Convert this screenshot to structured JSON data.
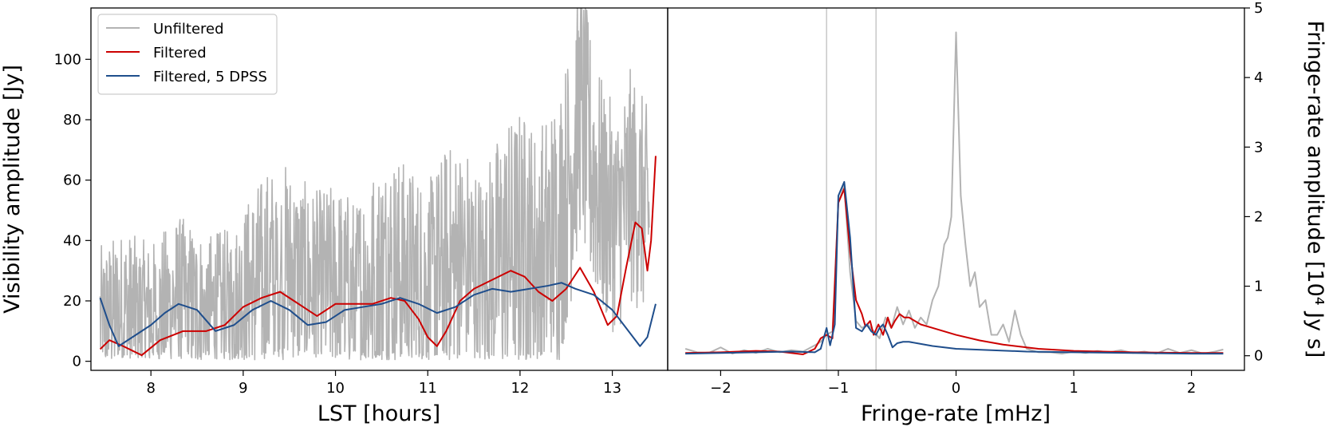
{
  "colors": {
    "unfiltered": "#b3b3b3",
    "filtered": "#cc0000",
    "dpss": "#1f4e8c",
    "marker_lines": "#c8c8c8"
  },
  "chart_data": [
    {
      "type": "line",
      "xlabel": "LST [hours]",
      "ylabel": "Visibility amplitude [Jy]",
      "xlim": [
        7.35,
        13.6
      ],
      "ylim": [
        -3,
        117
      ],
      "xticks": [
        8,
        9,
        10,
        11,
        12,
        13
      ],
      "yticks": [
        0,
        20,
        40,
        60,
        80,
        100
      ],
      "legend": {
        "position": "top-left"
      },
      "series": [
        {
          "name": "Unfiltered",
          "color": "#b3b3b3",
          "x": [
            7.45,
            7.7,
            8.0,
            8.3,
            8.6,
            8.9,
            9.1,
            9.3,
            9.45,
            9.6,
            9.8,
            10.0,
            10.2,
            10.4,
            10.6,
            10.8,
            11.0,
            11.2,
            11.4,
            11.6,
            11.8,
            12.0,
            12.2,
            12.4,
            12.55,
            12.65,
            12.75,
            12.9,
            13.05,
            13.2,
            13.4
          ],
          "y": [
            14,
            17,
            15,
            20,
            16,
            18,
            24,
            28,
            33,
            28,
            24,
            26,
            22,
            26,
            30,
            28,
            24,
            30,
            33,
            28,
            34,
            38,
            34,
            42,
            62,
            85,
            68,
            52,
            46,
            58,
            48
          ],
          "range": [
            22,
            24,
            22,
            26,
            24,
            24,
            30,
            34,
            30,
            30,
            30,
            30,
            30,
            34,
            36,
            34,
            32,
            38,
            36,
            32,
            40,
            42,
            40,
            44,
            40,
            40,
            40,
            36,
            34,
            36,
            32
          ]
        },
        {
          "name": "Filtered",
          "color": "#cc0000",
          "x": [
            7.45,
            7.55,
            7.7,
            7.9,
            8.1,
            8.35,
            8.6,
            8.8,
            9.0,
            9.2,
            9.4,
            9.6,
            9.8,
            10.0,
            10.2,
            10.4,
            10.6,
            10.75,
            10.9,
            11.0,
            11.1,
            11.2,
            11.35,
            11.5,
            11.7,
            11.9,
            12.05,
            12.2,
            12.35,
            12.5,
            12.65,
            12.8,
            12.95,
            13.05,
            13.15,
            13.25,
            13.32,
            13.38,
            13.42,
            13.47
          ],
          "y": [
            4,
            7,
            5,
            2,
            7,
            10,
            10,
            12,
            18,
            21,
            23,
            19,
            15,
            19,
            19,
            19,
            21,
            20,
            14,
            8,
            5,
            10,
            20,
            24,
            27,
            30,
            28,
            23,
            20,
            24,
            31,
            23,
            12,
            15,
            31,
            46,
            44,
            30,
            40,
            68
          ]
        },
        {
          "name": "Filtered, 5 DPSS",
          "color": "#1f4e8c",
          "x": [
            7.45,
            7.55,
            7.65,
            7.8,
            8.0,
            8.15,
            8.3,
            8.5,
            8.7,
            8.9,
            9.1,
            9.3,
            9.5,
            9.7,
            9.9,
            10.1,
            10.3,
            10.5,
            10.7,
            10.9,
            11.1,
            11.3,
            11.5,
            11.7,
            11.9,
            12.1,
            12.3,
            12.45,
            12.6,
            12.8,
            13.0,
            13.15,
            13.3,
            13.38,
            13.47
          ],
          "y": [
            21,
            12,
            5,
            8,
            12,
            16,
            19,
            17,
            10,
            12,
            17,
            20,
            17,
            12,
            13,
            17,
            18,
            19,
            21,
            19,
            16,
            18,
            22,
            24,
            23,
            24,
            25,
            26,
            24,
            22,
            17,
            11,
            5,
            8,
            19
          ]
        }
      ]
    },
    {
      "type": "line",
      "xlabel": "Fringe-rate [mHz]",
      "ylabel": "Fringe-rate amplitude [10⁴ Jy s]",
      "xlim": [
        -2.45,
        2.45
      ],
      "ylim": [
        -0.21,
        5
      ],
      "xticks": [
        -2,
        -1,
        0,
        1,
        2
      ],
      "yticks": [
        0,
        1,
        2,
        3,
        4,
        5
      ],
      "vlines": [
        -1.1,
        -0.68
      ],
      "series": [
        {
          "name": "Unfiltered",
          "color": "#b3b3b3",
          "x": [
            -2.3,
            -2.2,
            -2.1,
            -2.0,
            -1.9,
            -1.8,
            -1.7,
            -1.6,
            -1.5,
            -1.4,
            -1.3,
            -1.2,
            -1.15,
            -1.1,
            -1.05,
            -1.0,
            -0.95,
            -0.9,
            -0.85,
            -0.8,
            -0.75,
            -0.7,
            -0.65,
            -0.6,
            -0.55,
            -0.5,
            -0.45,
            -0.4,
            -0.35,
            -0.3,
            -0.25,
            -0.2,
            -0.15,
            -0.1,
            -0.07,
            -0.04,
            0.0,
            0.04,
            0.08,
            0.12,
            0.16,
            0.2,
            0.25,
            0.3,
            0.35,
            0.4,
            0.45,
            0.5,
            0.55,
            0.6,
            0.7,
            0.8,
            0.9,
            1.0,
            1.1,
            1.2,
            1.3,
            1.4,
            1.5,
            1.6,
            1.7,
            1.8,
            1.9,
            2.0,
            2.1,
            2.2,
            2.27
          ],
          "y": [
            0.1,
            0.05,
            0.04,
            0.12,
            0.03,
            0.08,
            0.04,
            0.1,
            0.05,
            0.08,
            0.06,
            0.15,
            0.2,
            0.3,
            0.35,
            2.2,
            2.45,
            1.2,
            0.5,
            0.4,
            0.45,
            0.35,
            0.25,
            0.55,
            0.4,
            0.7,
            0.45,
            0.65,
            0.4,
            0.55,
            0.45,
            0.8,
            1.0,
            1.6,
            1.7,
            2.0,
            4.65,
            2.3,
            1.6,
            1.0,
            1.2,
            0.7,
            0.8,
            0.3,
            0.3,
            0.45,
            0.2,
            0.65,
            0.3,
            0.1,
            0.05,
            0.05,
            0.03,
            0.06,
            0.04,
            0.07,
            0.05,
            0.08,
            0.04,
            0.06,
            0.03,
            0.1,
            0.04,
            0.08,
            0.03,
            0.06,
            0.09
          ]
        },
        {
          "name": "Filtered",
          "color": "#cc0000",
          "x": [
            -2.3,
            -2.0,
            -1.7,
            -1.5,
            -1.3,
            -1.2,
            -1.15,
            -1.1,
            -1.05,
            -1.0,
            -0.95,
            -0.9,
            -0.85,
            -0.8,
            -0.77,
            -0.73,
            -0.7,
            -0.66,
            -0.62,
            -0.58,
            -0.55,
            -0.52,
            -0.48,
            -0.44,
            -0.4,
            -0.35,
            -0.3,
            -0.2,
            -0.1,
            0.0,
            0.2,
            0.4,
            0.7,
            1.0,
            1.5,
            2.0,
            2.27
          ],
          "y": [
            0.04,
            0.05,
            0.07,
            0.06,
            0.02,
            0.1,
            0.25,
            0.3,
            0.25,
            2.2,
            2.4,
            1.5,
            0.8,
            0.6,
            0.42,
            0.5,
            0.3,
            0.45,
            0.3,
            0.55,
            0.4,
            0.5,
            0.6,
            0.55,
            0.55,
            0.5,
            0.45,
            0.4,
            0.35,
            0.3,
            0.22,
            0.16,
            0.1,
            0.07,
            0.05,
            0.04,
            0.04
          ]
        },
        {
          "name": "Filtered, 5 DPSS",
          "color": "#1f4e8c",
          "x": [
            -2.3,
            -2.0,
            -1.7,
            -1.4,
            -1.2,
            -1.15,
            -1.1,
            -1.07,
            -1.03,
            -1.0,
            -0.95,
            -0.9,
            -0.85,
            -0.8,
            -0.76,
            -0.72,
            -0.68,
            -0.65,
            -0.62,
            -0.58,
            -0.54,
            -0.5,
            -0.45,
            -0.4,
            -0.3,
            -0.2,
            -0.1,
            0.0,
            0.3,
            0.6,
            1.0,
            1.5,
            2.0,
            2.27
          ],
          "y": [
            0.03,
            0.04,
            0.05,
            0.06,
            0.05,
            0.1,
            0.4,
            0.15,
            0.45,
            2.3,
            2.5,
            1.7,
            0.4,
            0.35,
            0.45,
            0.35,
            0.3,
            0.4,
            0.45,
            0.3,
            0.12,
            0.18,
            0.2,
            0.2,
            0.17,
            0.14,
            0.12,
            0.1,
            0.08,
            0.06,
            0.05,
            0.04,
            0.03,
            0.03
          ]
        }
      ]
    }
  ]
}
